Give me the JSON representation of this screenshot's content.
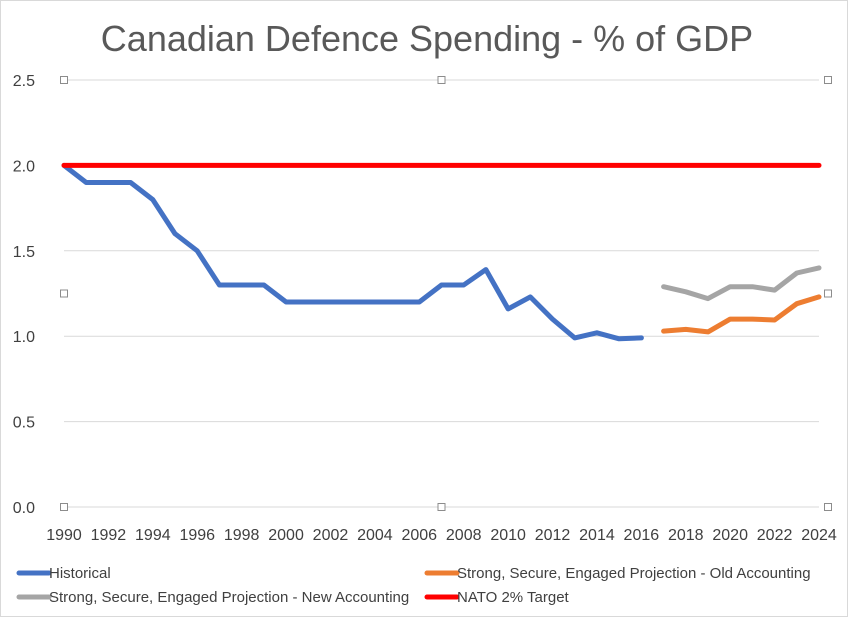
{
  "chart_data": {
    "type": "line",
    "title": "Canadian Defence Spending - % of GDP",
    "xlabel": "",
    "ylabel": "",
    "ylim": [
      0,
      2.5
    ],
    "xlim": [
      1990,
      2024
    ],
    "yticks": [
      "0.0",
      "0.5",
      "1.0",
      "1.5",
      "2.0",
      "2.5"
    ],
    "xticks": [
      "1990",
      "1992",
      "1994",
      "1996",
      "1998",
      "2000",
      "2002",
      "2004",
      "2006",
      "2008",
      "2010",
      "2012",
      "2014",
      "2016",
      "2018",
      "2020",
      "2022",
      "2024"
    ],
    "grid": true,
    "legend_position": "bottom",
    "series": [
      {
        "name": "Historical",
        "color": "#4472C4",
        "x": [
          1990,
          1991,
          1992,
          1993,
          1994,
          1995,
          1996,
          1997,
          1998,
          1999,
          2000,
          2001,
          2002,
          2003,
          2004,
          2005,
          2006,
          2007,
          2008,
          2009,
          2010,
          2011,
          2012,
          2013,
          2014,
          2015,
          2016
        ],
        "values": [
          2.0,
          1.9,
          1.9,
          1.9,
          1.8,
          1.6,
          1.5,
          1.3,
          1.3,
          1.3,
          1.2,
          1.2,
          1.2,
          1.2,
          1.2,
          1.2,
          1.2,
          1.3,
          1.3,
          1.39,
          1.16,
          1.23,
          1.1,
          0.99,
          1.02,
          0.985,
          0.99
        ]
      },
      {
        "name": "Strong, Secure, Engaged Projection - Old Accounting",
        "color": "#ED7D31",
        "x": [
          2017,
          2018,
          2019,
          2020,
          2021,
          2022,
          2023,
          2024
        ],
        "values": [
          1.03,
          1.04,
          1.025,
          1.1,
          1.1,
          1.095,
          1.19,
          1.23
        ]
      },
      {
        "name": "Strong, Secure, Engaged Projection - New Accounting",
        "color": "#A5A5A5",
        "x": [
          2017,
          2018,
          2019,
          2020,
          2021,
          2022,
          2023,
          2024
        ],
        "values": [
          1.29,
          1.26,
          1.22,
          1.29,
          1.29,
          1.27,
          1.37,
          1.4
        ]
      },
      {
        "name": "NATO 2% Target",
        "color": "#FF0000",
        "x": [
          1990,
          2024
        ],
        "values": [
          2.0,
          2.0
        ]
      }
    ]
  }
}
